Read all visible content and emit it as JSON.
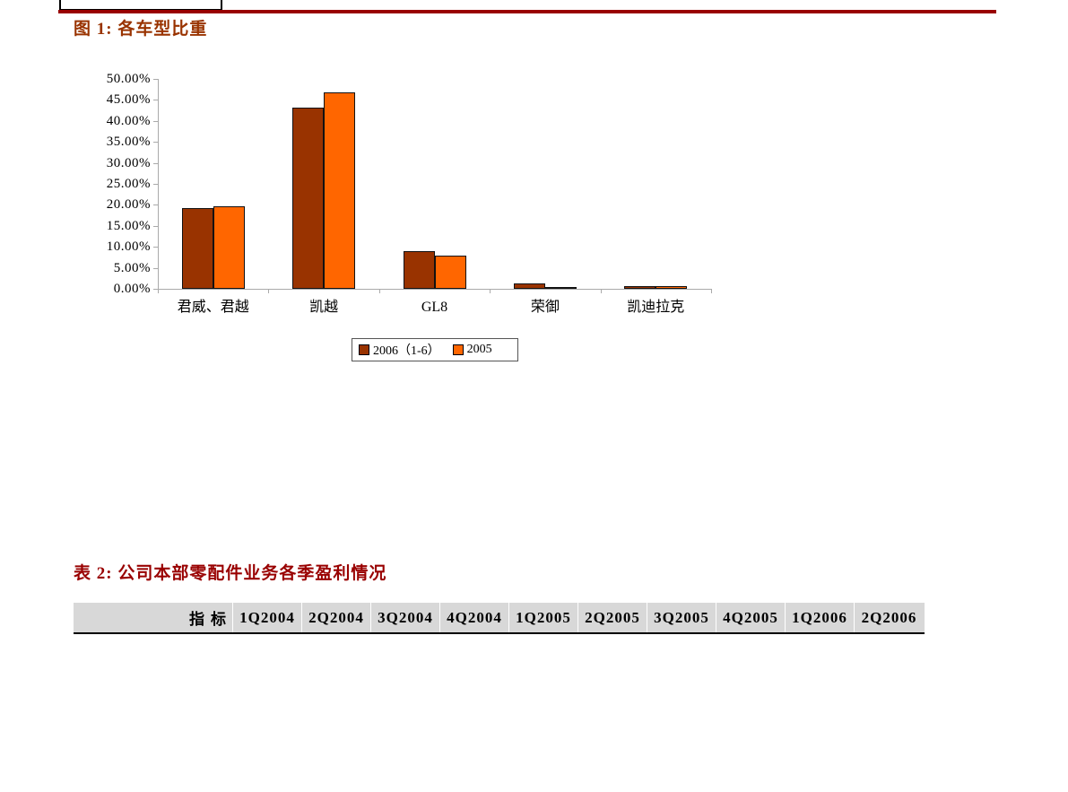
{
  "page": {
    "background": "#ffffff"
  },
  "top_rule": {
    "color": "#990000"
  },
  "figure": {
    "title": "图 1: 各车型比重",
    "title_color": "#993300"
  },
  "chart_data": {
    "type": "bar",
    "title": "图 1: 各车型比重",
    "categories": [
      "君威、君越",
      "凯越",
      "GL8",
      "荣御",
      "凯迪拉克"
    ],
    "series": [
      {
        "name": "2006（1-6）",
        "color": "#993300",
        "values": [
          19.2,
          43.2,
          8.9,
          1.3,
          0.6
        ]
      },
      {
        "name": "2005",
        "color": "#ff6600",
        "values": [
          19.7,
          46.7,
          8.0,
          0.4,
          0.6
        ]
      }
    ],
    "xlabel": "",
    "ylabel": "",
    "ylim": [
      0,
      50
    ],
    "ytick_step": 5,
    "ytick_labels": [
      "50.00%",
      "45.00%",
      "40.00%",
      "35.00%",
      "30.00%",
      "25.00%",
      "20.00%",
      "15.00%",
      "10.00%",
      "5.00%",
      "0.00%"
    ],
    "grid": false,
    "legend_position": "bottom-center",
    "plot_bg": "#ffffff",
    "axis_color": "#aaaaaa",
    "bar_border_color": "#111111"
  },
  "table_section": {
    "title": "表 2: 公司本部零配件业务各季盈利情况",
    "title_color": "#990000",
    "header_bg": "#d8d8d8",
    "header_cells": [
      "指标",
      "1Q2004",
      "2Q2004",
      "3Q2004",
      "4Q2004",
      "1Q2005",
      "2Q2005",
      "3Q2005",
      "4Q2005",
      "1Q2006",
      "2Q2006"
    ]
  }
}
